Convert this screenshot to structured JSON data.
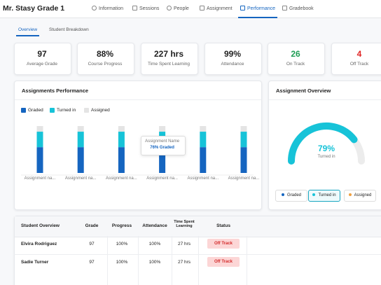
{
  "header": {
    "title": "Mr. Stasy Grade 1",
    "tabs": [
      "Information",
      "Sessions",
      "People",
      "Assignment",
      "Performance",
      "Gradebook"
    ],
    "active_tab": 4
  },
  "subtabs": {
    "items": [
      "Overview",
      "Student Breakdown"
    ],
    "active": 0
  },
  "stats": [
    {
      "value": "97",
      "label": "Average Grade"
    },
    {
      "value": "88%",
      "label": "Course Progress"
    },
    {
      "value": "227 hrs",
      "label": "Time Spent Learning"
    },
    {
      "value": "99%",
      "label": "Attendance"
    },
    {
      "value": "26",
      "label": "On Track",
      "color": "#1f9d55"
    },
    {
      "value": "4",
      "label": "Off Track",
      "color": "#e02424"
    }
  ],
  "assignments_performance": {
    "title": "Assignments Performance",
    "categories": [
      "Assignment na...",
      "Assignment na...",
      "Assignment na...",
      "Assignment na...",
      "Assignment na...",
      "Assignment na..."
    ],
    "series": [
      {
        "name": "Graded",
        "color": "#1565c0",
        "values": [
          55,
          55,
          55,
          76,
          55,
          55
        ]
      },
      {
        "name": "Turned in",
        "color": "#17c3d8",
        "values": [
          33,
          33,
          33,
          12,
          33,
          33
        ]
      },
      {
        "name": "Assigned",
        "color": "#e4e4e4",
        "values": [
          12,
          12,
          12,
          12,
          12,
          12
        ]
      }
    ],
    "ylim": [
      0,
      100
    ],
    "tooltip": {
      "title": "Assignment Name",
      "text": "76% Graded",
      "index": 3
    }
  },
  "assignment_overview": {
    "title": "Assignment Overview",
    "value": 79,
    "value_label": "79%",
    "caption": "Turned in",
    "range": [
      0,
      100
    ],
    "color": "#17c3d8",
    "track_color": "#ececec",
    "buttons": [
      {
        "label": "Graded",
        "color": "#1565c0"
      },
      {
        "label": "Turned in",
        "color": "#17c3d8"
      },
      {
        "label": "Assigned",
        "color": "#f0a040"
      }
    ],
    "active_button": 1
  },
  "student_overview": {
    "columns": [
      "Student Overview",
      "Grade",
      "Progress",
      "Attendance",
      "Time Spent Learning",
      "Status"
    ],
    "rows": [
      [
        "Elvira Rodriguez",
        "97",
        "100%",
        "100%",
        "27 hrs",
        "Off Track"
      ],
      [
        "Sadie Turner",
        "97",
        "100%",
        "100%",
        "27 hrs",
        "Off Track"
      ]
    ]
  }
}
